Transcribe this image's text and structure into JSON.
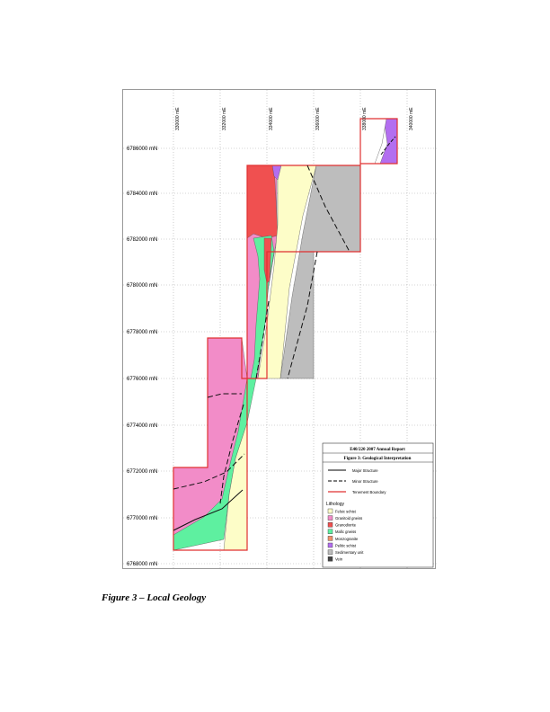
{
  "caption": "Figure 3 – Local Geology",
  "map": {
    "northing_labels": [
      "6786000 mN",
      "6784000 mN",
      "6782000 mN",
      "6780000 mN",
      "6778000 mN",
      "6776000 mN",
      "6774000 mN",
      "6772000 mN",
      "6770000 mN",
      "6768000 mN"
    ],
    "easting_labels": [
      "330000 mE",
      "332000 mE",
      "334000 mE",
      "336000 mE",
      "338000 mE",
      "340000 mE"
    ]
  },
  "legend": {
    "report_title": "E40/220 2007 Annual Report",
    "figure_title": "Figure 3: Geological Interpretation",
    "structures": [
      {
        "label": "Major Structure",
        "style": "solid"
      },
      {
        "label": "Minor Structure",
        "style": "dashed"
      },
      {
        "label": "Tenement Boundary",
        "style": "boundary"
      }
    ],
    "lithology_heading": "Lithology",
    "lithology": [
      {
        "label": "Felsic schist",
        "color": "#fdfdc8"
      },
      {
        "label": "Granitoid gneiss",
        "color": "#f28cc8"
      },
      {
        "label": "Granodiorite",
        "color": "#f05050"
      },
      {
        "label": "Mafic gneiss",
        "color": "#5ef0a0"
      },
      {
        "label": "Monzogranite",
        "color": "#f0906a"
      },
      {
        "label": "Pelitic schist",
        "color": "#b36ef0"
      },
      {
        "label": "Sedimentary unit",
        "color": "#bdbdbd"
      },
      {
        "label": "Vein",
        "color": "#444444"
      }
    ],
    "boundary_color": "#e03030"
  }
}
